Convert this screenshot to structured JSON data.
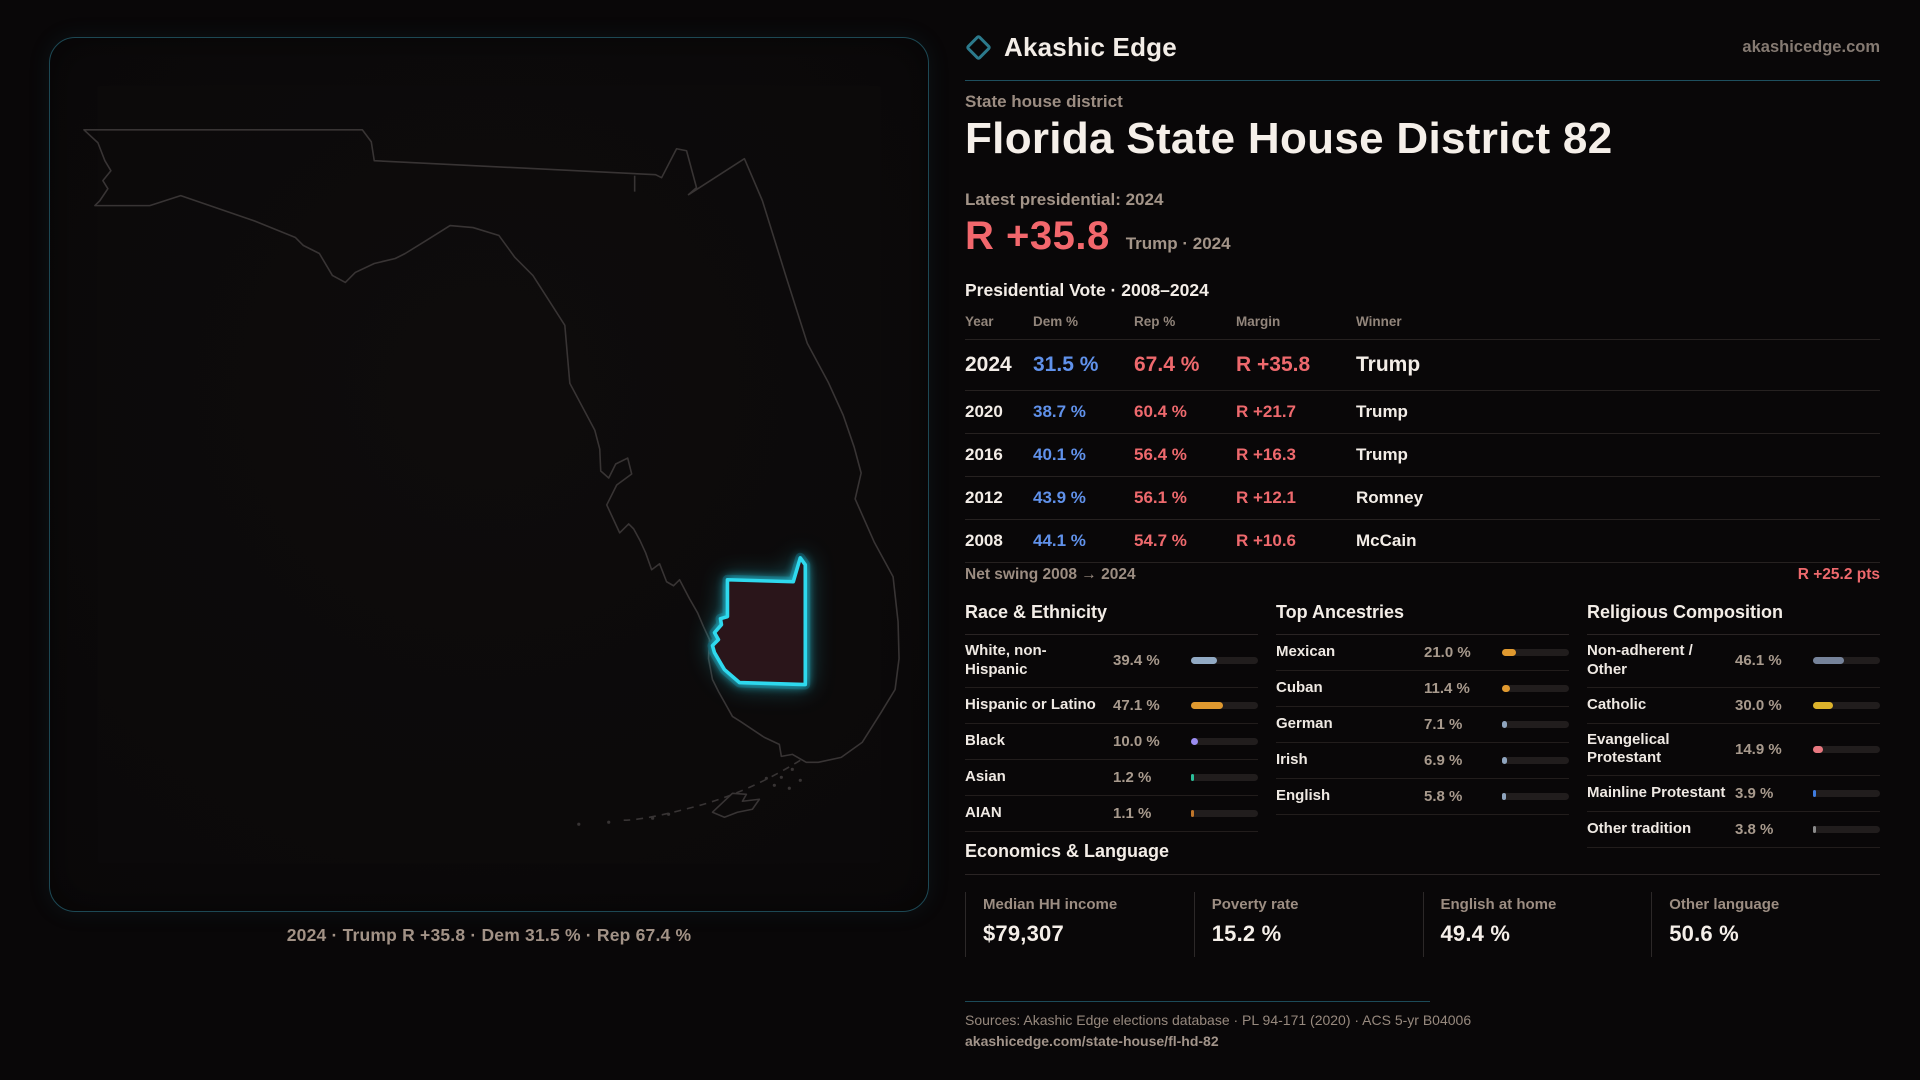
{
  "brand": {
    "name": "Akashic Edge",
    "site": "akashicedge.com"
  },
  "eyebrow": "State house district",
  "title": "Florida State House District 82",
  "latest_label": "Latest presidential: 2024",
  "headline": {
    "margin": "R +35.8",
    "sub": "Trump · 2024"
  },
  "table": {
    "title": "Presidential Vote · 2008–2024",
    "headers": {
      "year": "Year",
      "dem": "Dem %",
      "rep": "Rep %",
      "margin": "Margin",
      "winner": "Winner"
    },
    "rows": [
      {
        "year": "2024",
        "dem": "31.5 %",
        "rep": "67.4 %",
        "margin": "R +35.8",
        "winner": "Trump"
      },
      {
        "year": "2020",
        "dem": "38.7 %",
        "rep": "60.4 %",
        "margin": "R +21.7",
        "winner": "Trump"
      },
      {
        "year": "2016",
        "dem": "40.1 %",
        "rep": "56.4 %",
        "margin": "R +16.3",
        "winner": "Trump"
      },
      {
        "year": "2012",
        "dem": "43.9 %",
        "rep": "56.1 %",
        "margin": "R +12.1",
        "winner": "Romney"
      },
      {
        "year": "2008",
        "dem": "44.1 %",
        "rep": "54.7 %",
        "margin": "R +10.6",
        "winner": "McCain"
      }
    ]
  },
  "net_swing": {
    "label": "Net swing 2008 → 2024",
    "value": "R +25.2 pts"
  },
  "demographics": [
    {
      "title": "Race & Ethnicity",
      "rows": [
        {
          "label": "White, non-\nHispanic",
          "value": "39.4 %",
          "pct": 39.4,
          "color": "#92aac4"
        },
        {
          "label": "Hispanic or Latino",
          "value": "47.1 %",
          "pct": 47.1,
          "color": "#e0992f"
        },
        {
          "label": "Black",
          "value": "10.0 %",
          "pct": 10.0,
          "color": "#9b8cf0"
        },
        {
          "label": "Asian",
          "value": "1.2 %",
          "pct": 1.2,
          "color": "#2bbf9a"
        },
        {
          "label": "AIAN",
          "value": "1.1 %",
          "pct": 1.1,
          "color": "#c0762a"
        }
      ]
    },
    {
      "title": "Top Ancestries",
      "rows": [
        {
          "label": "Mexican",
          "value": "21.0 %",
          "pct": 21.0,
          "color": "#e0992f"
        },
        {
          "label": "Cuban",
          "value": "11.4 %",
          "pct": 11.4,
          "color": "#e0992f"
        },
        {
          "label": "German",
          "value": "7.1 %",
          "pct": 7.1,
          "color": "#8fa4bd"
        },
        {
          "label": "Irish",
          "value": "6.9 %",
          "pct": 6.9,
          "color": "#8fa4bd"
        },
        {
          "label": "English",
          "value": "5.8 %",
          "pct": 5.8,
          "color": "#8fa4bd"
        }
      ]
    },
    {
      "title": "Religious Composition",
      "rows": [
        {
          "label": "Non-adherent /\nOther",
          "value": "46.1 %",
          "pct": 46.1,
          "color": "#76839a"
        },
        {
          "label": "Catholic",
          "value": "30.0 %",
          "pct": 30.0,
          "color": "#ddb32b"
        },
        {
          "label": "Evangelical\nProtestant",
          "value": "14.9 %",
          "pct": 14.9,
          "color": "#e87880"
        },
        {
          "label": "Mainline Protestant",
          "value": "3.9 %",
          "pct": 3.9,
          "color": "#3f7ce0"
        },
        {
          "label": "Other tradition",
          "value": "3.8 %",
          "pct": 3.8,
          "color": "#8a8a8a"
        }
      ]
    }
  ],
  "economics": {
    "title": "Economics & Language",
    "stats": [
      {
        "label": "Median HH income",
        "value": "$79,307"
      },
      {
        "label": "Poverty rate",
        "value": "15.2 %"
      },
      {
        "label": "English at home",
        "value": "49.4 %"
      },
      {
        "label": "Other language",
        "value": "50.6 %"
      }
    ]
  },
  "footer": {
    "sources": "Sources: Akashic Edge elections database · PL 94-171 (2020) · ACS 5-yr B04006",
    "url": "akashicedge.com/state-house/fl-hd-82"
  },
  "map": {
    "caption": "2024 · Trump R +35.8 · Dem 31.5 % · Rep 67.4 %"
  },
  "colors": {
    "accent_cyan": "#2ed9ee",
    "dem_blue": "#6091ea",
    "rep_red": "#ee696d",
    "divider_teal": "#1e4f5e"
  }
}
